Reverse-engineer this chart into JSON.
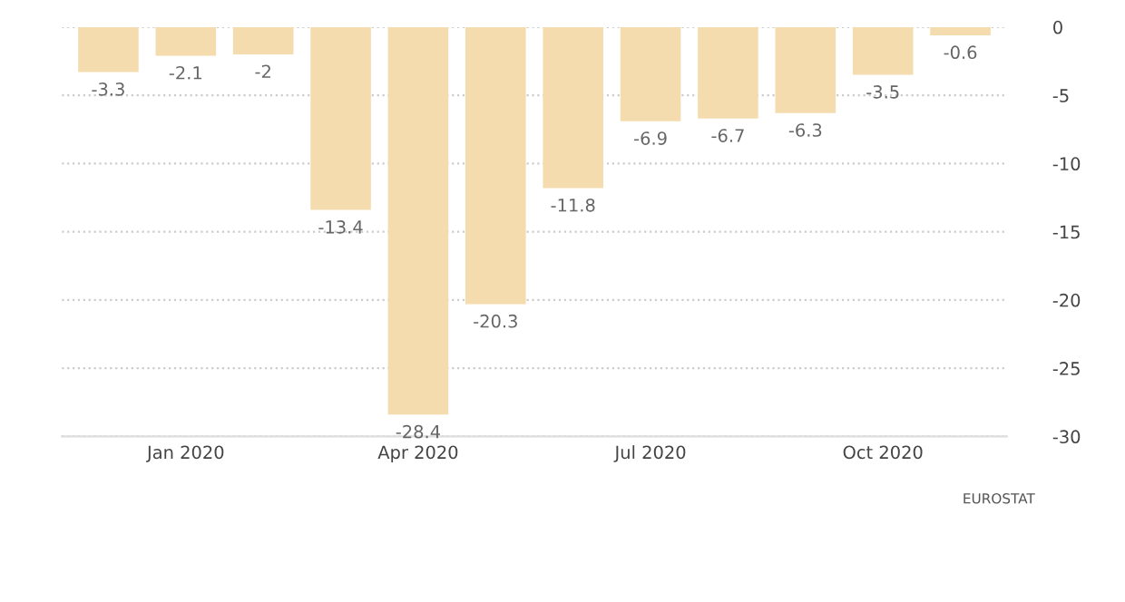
{
  "chart_data": {
    "type": "bar",
    "categories": [
      null,
      "Jan 2020",
      null,
      null,
      "Apr 2020",
      null,
      null,
      "Jul 2020",
      null,
      null,
      "Oct 2020",
      null
    ],
    "values": [
      -3.3,
      -2.1,
      -2,
      -13.4,
      -28.4,
      -20.3,
      -11.8,
      -6.9,
      -6.7,
      -6.3,
      -3.5,
      -0.6
    ],
    "color": "#f5dcaf",
    "ylim": [
      -30,
      0
    ],
    "yticks": [
      0,
      -5,
      -10,
      -15,
      -20,
      -25,
      -30
    ],
    "grid": "y",
    "data_labels": true,
    "annotations": [
      "EUROSTAT"
    ]
  }
}
